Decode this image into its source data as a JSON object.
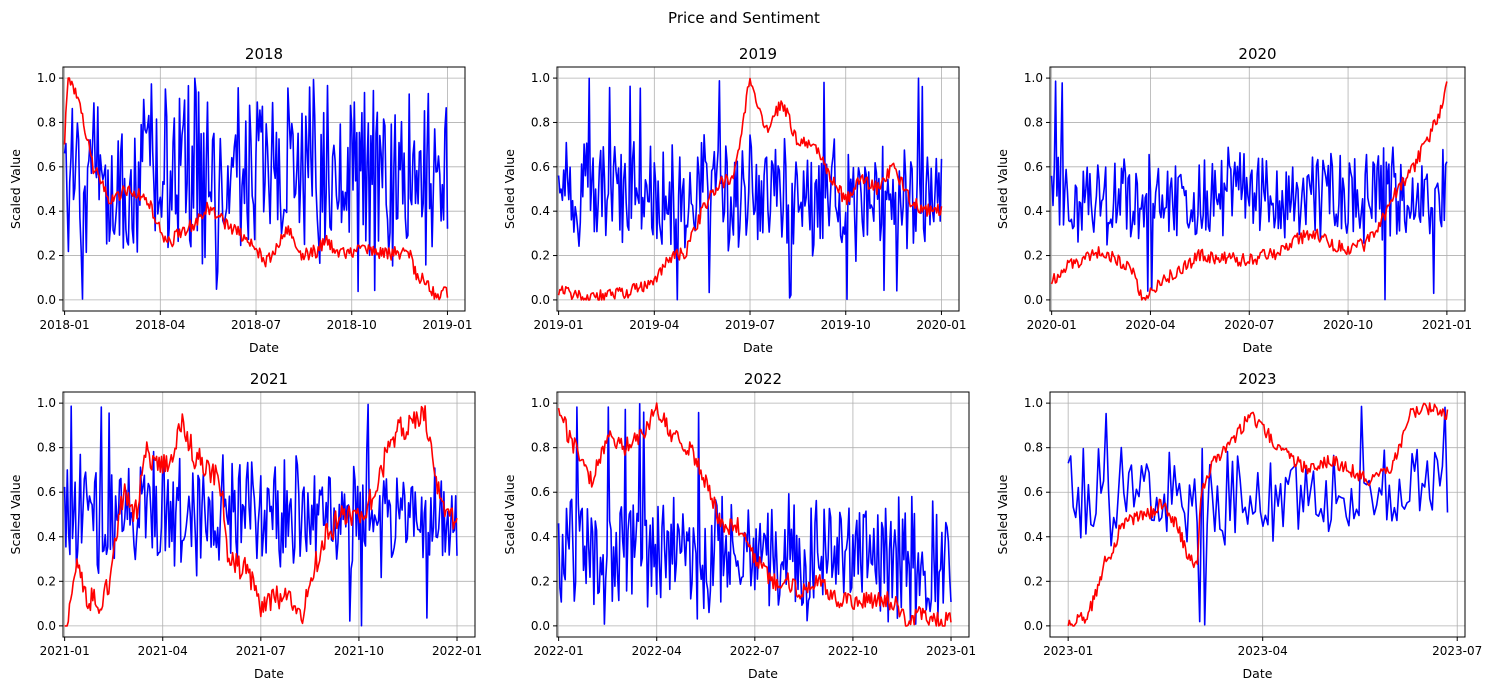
{
  "figure": {
    "suptitle": "Price and Sentiment"
  },
  "colors": {
    "price": "#ff0000",
    "sentiment": "#0000ff",
    "grid": "#b0b0b0"
  },
  "chart_data": [
    {
      "type": "line",
      "title": "2018",
      "xlabel": "Date",
      "ylabel": "Scaled Value",
      "x_range": [
        -0.05,
        12.55
      ],
      "ylim": [
        -0.05,
        1.05
      ],
      "x_ticks": [
        {
          "v": 0,
          "label": "2018-01"
        },
        {
          "v": 3,
          "label": "2018-04"
        },
        {
          "v": 6,
          "label": "2018-07"
        },
        {
          "v": 9,
          "label": "2018-10"
        },
        {
          "v": 12,
          "label": "2019-01"
        }
      ],
      "y_ticks": [
        0.0,
        0.2,
        0.4,
        0.6,
        0.8,
        1.0
      ],
      "series": [
        {
          "name": "price",
          "color": "#ff0000",
          "x_end": 12,
          "anchors": [
            [
              0,
              0.72
            ],
            [
              0.1,
              1.0
            ],
            [
              0.25,
              0.98
            ],
            [
              0.5,
              0.85
            ],
            [
              0.9,
              0.6
            ],
            [
              1.4,
              0.45
            ],
            [
              2.0,
              0.5
            ],
            [
              2.6,
              0.45
            ],
            [
              3.2,
              0.25
            ],
            [
              3.8,
              0.32
            ],
            [
              4.2,
              0.36
            ],
            [
              4.5,
              0.42
            ],
            [
              5.0,
              0.35
            ],
            [
              5.5,
              0.3
            ],
            [
              6.0,
              0.22
            ],
            [
              6.3,
              0.18
            ],
            [
              6.5,
              0.2
            ],
            [
              7.0,
              0.32
            ],
            [
              7.4,
              0.2
            ],
            [
              7.9,
              0.22
            ],
            [
              8.2,
              0.27
            ],
            [
              8.6,
              0.2
            ],
            [
              9.2,
              0.23
            ],
            [
              10.0,
              0.21
            ],
            [
              10.8,
              0.21
            ],
            [
              11.0,
              0.12
            ],
            [
              11.5,
              0.05
            ],
            [
              11.7,
              0.01
            ],
            [
              11.85,
              0.05
            ],
            [
              12.0,
              0.03
            ]
          ],
          "jitter": 0.03
        },
        {
          "name": "sentiment",
          "color": "#0000ff",
          "x_end": 12,
          "points": 300,
          "base": 0.55,
          "amp": 0.45,
          "min": 0.0,
          "max": 1.0
        }
      ]
    },
    {
      "type": "line",
      "title": "2019",
      "xlabel": "Date",
      "ylabel": "Scaled Value",
      "x_range": [
        -0.05,
        12.55
      ],
      "ylim": [
        -0.05,
        1.05
      ],
      "x_ticks": [
        {
          "v": 0,
          "label": "2019-01"
        },
        {
          "v": 3,
          "label": "2019-04"
        },
        {
          "v": 6,
          "label": "2019-07"
        },
        {
          "v": 9,
          "label": "2019-10"
        },
        {
          "v": 12,
          "label": "2020-01"
        }
      ],
      "y_ticks": [
        0.0,
        0.2,
        0.4,
        0.6,
        0.8,
        1.0
      ],
      "series": [
        {
          "name": "price",
          "color": "#ff0000",
          "x_end": 12,
          "anchors": [
            [
              0,
              0.04
            ],
            [
              0.5,
              0.03
            ],
            [
              1.0,
              0.01
            ],
            [
              2.0,
              0.03
            ],
            [
              3.0,
              0.07
            ],
            [
              3.4,
              0.18
            ],
            [
              4.0,
              0.22
            ],
            [
              4.5,
              0.4
            ],
            [
              5.0,
              0.52
            ],
            [
              5.5,
              0.55
            ],
            [
              6.0,
              1.0
            ],
            [
              6.5,
              0.75
            ],
            [
              7.0,
              0.9
            ],
            [
              7.5,
              0.7
            ],
            [
              8.0,
              0.72
            ],
            [
              8.5,
              0.55
            ],
            [
              9.0,
              0.45
            ],
            [
              9.5,
              0.55
            ],
            [
              10.0,
              0.5
            ],
            [
              10.5,
              0.6
            ],
            [
              11.0,
              0.45
            ],
            [
              11.5,
              0.4
            ],
            [
              12.0,
              0.41
            ]
          ],
          "jitter": 0.03
        },
        {
          "name": "sentiment",
          "color": "#0000ff",
          "x_end": 12,
          "points": 300,
          "base": 0.47,
          "amp": 0.3,
          "min": 0.0,
          "max": 1.0
        }
      ]
    },
    {
      "type": "line",
      "title": "2020",
      "xlabel": "Date",
      "ylabel": "Scaled Value",
      "x_range": [
        -0.05,
        12.55
      ],
      "ylim": [
        -0.05,
        1.05
      ],
      "x_ticks": [
        {
          "v": 0,
          "label": "2020-01"
        },
        {
          "v": 3,
          "label": "2020-04"
        },
        {
          "v": 6,
          "label": "2020-07"
        },
        {
          "v": 9,
          "label": "2020-10"
        },
        {
          "v": 12,
          "label": "2021-01"
        }
      ],
      "y_ticks": [
        0.0,
        0.2,
        0.4,
        0.6,
        0.8,
        1.0
      ],
      "series": [
        {
          "name": "price",
          "color": "#ff0000",
          "x_end": 12,
          "anchors": [
            [
              0,
              0.09
            ],
            [
              0.5,
              0.15
            ],
            [
              1.0,
              0.18
            ],
            [
              1.5,
              0.22
            ],
            [
              2.0,
              0.18
            ],
            [
              2.5,
              0.12
            ],
            [
              2.75,
              0.0
            ],
            [
              3.0,
              0.05
            ],
            [
              3.5,
              0.1
            ],
            [
              4.0,
              0.15
            ],
            [
              4.5,
              0.2
            ],
            [
              5.0,
              0.19
            ],
            [
              6.0,
              0.18
            ],
            [
              7.0,
              0.22
            ],
            [
              7.5,
              0.28
            ],
            [
              8.0,
              0.3
            ],
            [
              8.5,
              0.25
            ],
            [
              9.0,
              0.23
            ],
            [
              9.5,
              0.25
            ],
            [
              10.0,
              0.35
            ],
            [
              10.5,
              0.5
            ],
            [
              11.0,
              0.6
            ],
            [
              11.5,
              0.75
            ],
            [
              11.8,
              0.85
            ],
            [
              12.0,
              1.0
            ]
          ],
          "jitter": 0.03
        },
        {
          "name": "sentiment",
          "color": "#0000ff",
          "x_end": 12,
          "points": 300,
          "base": 0.47,
          "amp": 0.25,
          "min": 0.0,
          "max": 1.0
        }
      ]
    },
    {
      "type": "line",
      "title": "2021",
      "xlabel": "Date",
      "ylabel": "Scaled Value",
      "x_range": [
        -0.05,
        12.55
      ],
      "ylim": [
        -0.05,
        1.05
      ],
      "x_ticks": [
        {
          "v": 0,
          "label": "2021-01"
        },
        {
          "v": 3,
          "label": "2021-04"
        },
        {
          "v": 6,
          "label": "2021-07"
        },
        {
          "v": 9,
          "label": "2021-10"
        },
        {
          "v": 12,
          "label": "2022-01"
        }
      ],
      "y_ticks": [
        0.0,
        0.2,
        0.4,
        0.6,
        0.8,
        1.0
      ],
      "series": [
        {
          "name": "price",
          "color": "#ff0000",
          "x_end": 12,
          "anchors": [
            [
              0,
              0.0
            ],
            [
              0.2,
              0.1
            ],
            [
              0.35,
              0.3
            ],
            [
              0.6,
              0.15
            ],
            [
              1.0,
              0.1
            ],
            [
              1.4,
              0.2
            ],
            [
              1.8,
              0.6
            ],
            [
              2.2,
              0.5
            ],
            [
              2.5,
              0.8
            ],
            [
              2.8,
              0.7
            ],
            [
              3.2,
              0.75
            ],
            [
              3.6,
              0.9
            ],
            [
              4.0,
              0.75
            ],
            [
              4.5,
              0.7
            ],
            [
              4.8,
              0.6
            ],
            [
              5.0,
              0.3
            ],
            [
              5.5,
              0.25
            ],
            [
              5.8,
              0.2
            ],
            [
              6.0,
              0.1
            ],
            [
              6.5,
              0.12
            ],
            [
              7.0,
              0.1
            ],
            [
              7.3,
              0.05
            ],
            [
              7.6,
              0.25
            ],
            [
              8.0,
              0.4
            ],
            [
              8.5,
              0.5
            ],
            [
              9.0,
              0.5
            ],
            [
              9.5,
              0.6
            ],
            [
              10.0,
              0.85
            ],
            [
              10.5,
              0.9
            ],
            [
              11.0,
              0.95
            ],
            [
              11.3,
              0.7
            ],
            [
              11.6,
              0.5
            ],
            [
              12.0,
              0.45
            ]
          ],
          "jitter": 0.06
        },
        {
          "name": "sentiment",
          "color": "#0000ff",
          "x_end": 12,
          "points": 300,
          "base": 0.5,
          "amp": 0.3,
          "min": 0.0,
          "max": 1.0
        }
      ]
    },
    {
      "type": "line",
      "title": "2022",
      "xlabel": "Date",
      "ylabel": "Scaled Value",
      "x_range": [
        -0.05,
        12.55
      ],
      "ylim": [
        -0.05,
        1.05
      ],
      "x_ticks": [
        {
          "v": 0,
          "label": "2022-01"
        },
        {
          "v": 3,
          "label": "2022-04"
        },
        {
          "v": 6,
          "label": "2022-07"
        },
        {
          "v": 9,
          "label": "2022-10"
        },
        {
          "v": 12,
          "label": "2023-01"
        }
      ],
      "y_ticks": [
        0.0,
        0.2,
        0.4,
        0.6,
        0.8,
        1.0
      ],
      "series": [
        {
          "name": "price",
          "color": "#ff0000",
          "x_end": 12,
          "anchors": [
            [
              0,
              1.0
            ],
            [
              0.3,
              0.85
            ],
            [
              0.7,
              0.75
            ],
            [
              1.0,
              0.65
            ],
            [
              1.5,
              0.85
            ],
            [
              2.0,
              0.8
            ],
            [
              2.5,
              0.85
            ],
            [
              3.0,
              0.98
            ],
            [
              3.5,
              0.85
            ],
            [
              4.0,
              0.8
            ],
            [
              4.5,
              0.65
            ],
            [
              5.0,
              0.45
            ],
            [
              5.5,
              0.45
            ],
            [
              6.0,
              0.3
            ],
            [
              6.5,
              0.2
            ],
            [
              7.0,
              0.2
            ],
            [
              7.5,
              0.15
            ],
            [
              8.0,
              0.2
            ],
            [
              8.5,
              0.12
            ],
            [
              9.0,
              0.1
            ],
            [
              9.5,
              0.12
            ],
            [
              10.0,
              0.12
            ],
            [
              10.3,
              0.1
            ],
            [
              10.6,
              0.02
            ],
            [
              11.0,
              0.05
            ],
            [
              11.5,
              0.03
            ],
            [
              12.0,
              0.03
            ]
          ],
          "jitter": 0.04
        },
        {
          "name": "sentiment",
          "color": "#0000ff",
          "x_end": 12,
          "points": 300,
          "base": 0.32,
          "amp": 0.3,
          "min": 0.0,
          "max": 1.0
        }
      ]
    },
    {
      "type": "line",
      "title": "2023",
      "xlabel": "Date",
      "ylabel": "Scaled Value",
      "x_range": [
        -0.28,
        6.12
      ],
      "ylim": [
        -0.05,
        1.05
      ],
      "x_ticks": [
        {
          "v": 0,
          "label": "2023-01"
        },
        {
          "v": 3,
          "label": "2023-04"
        },
        {
          "v": 6,
          "label": "2023-07"
        }
      ],
      "y_ticks": [
        0.0,
        0.2,
        0.4,
        0.6,
        0.8,
        1.0
      ],
      "series": [
        {
          "name": "price",
          "color": "#ff0000",
          "x_end": 5.85,
          "anchors": [
            [
              0,
              0.0
            ],
            [
              0.5,
              0.05
            ],
            [
              0.8,
              0.2
            ],
            [
              0.9,
              0.3
            ],
            [
              1.1,
              0.32
            ],
            [
              1.3,
              0.45
            ],
            [
              1.6,
              0.48
            ],
            [
              2.0,
              0.5
            ],
            [
              2.3,
              0.55
            ],
            [
              2.7,
              0.45
            ],
            [
              3.0,
              0.3
            ],
            [
              3.2,
              0.28
            ],
            [
              3.3,
              0.6
            ],
            [
              3.6,
              0.75
            ],
            [
              4.0,
              0.8
            ],
            [
              4.5,
              0.95
            ],
            [
              5.0,
              0.85
            ],
            [
              5.5,
              0.75
            ],
            [
              6.0,
              0.7
            ],
            [
              6.5,
              0.75
            ],
            [
              7.0,
              0.7
            ],
            [
              7.5,
              0.65
            ],
            [
              8.0,
              0.7
            ],
            [
              8.5,
              0.95
            ],
            [
              9.0,
              0.98
            ],
            [
              9.4,
              0.95
            ]
          ],
          "jitter": 0.03,
          "x_scale": 0.62234
        },
        {
          "name": "sentiment",
          "color": "#0000ff",
          "x_end": 5.85,
          "points": 150,
          "base": 0.6,
          "amp": 0.25,
          "min": 0.0,
          "max": 1.0
        }
      ]
    }
  ]
}
